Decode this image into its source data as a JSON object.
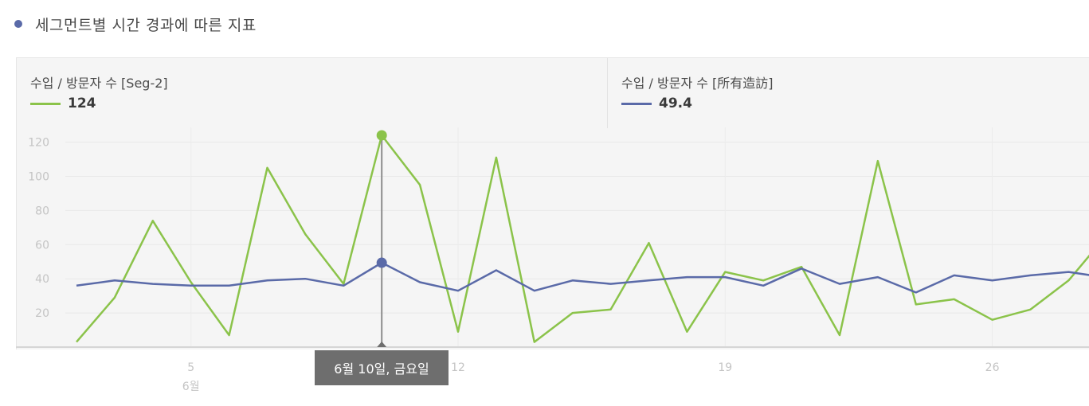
{
  "panel": {
    "title": "세그먼트별 시간 경과에 따른 지표"
  },
  "legend": [
    {
      "label": "수입 / 방문자 수 [Seg-2]",
      "value": "124",
      "color": "#8bc34a"
    },
    {
      "label": "수입 / 방문자 수 [所有造訪]",
      "value": "49.4",
      "color": "#5a6aa8"
    }
  ],
  "tooltip": {
    "text": "6월 10일, 금요일"
  },
  "chart_data": {
    "type": "line",
    "x_axis": {
      "ticks": [
        {
          "day": 5,
          "label": "5",
          "sublabel": "6월"
        },
        {
          "day": 12,
          "label": "12",
          "sublabel": ""
        },
        {
          "day": 19,
          "label": "19",
          "sublabel": ""
        },
        {
          "day": 26,
          "label": "26",
          "sublabel": ""
        }
      ],
      "range": [
        2,
        28.6
      ]
    },
    "y_axis": {
      "ticks": [
        20,
        40,
        60,
        80,
        100,
        120
      ],
      "range": [
        0,
        125
      ]
    },
    "x": [
      2,
      3,
      4,
      5,
      6,
      7,
      8,
      9,
      10,
      11,
      12,
      13,
      14,
      15,
      16,
      17,
      18,
      19,
      20,
      21,
      22,
      23,
      24,
      25,
      26,
      27,
      28,
      28.6
    ],
    "series": [
      {
        "name": "수입 / 방문자 수 [Seg-2]",
        "color": "#8bc34a",
        "values": [
          3,
          29,
          74,
          38,
          7,
          105,
          66,
          37,
          124,
          95,
          9,
          111,
          3,
          20,
          22,
          61,
          9,
          44,
          39,
          47,
          7,
          109,
          25,
          28,
          16,
          22,
          39,
          55
        ]
      },
      {
        "name": "수입 / 방문자 수 [所有造訪]",
        "color": "#5a6aa8",
        "values": [
          36,
          39,
          37,
          36,
          36,
          39,
          40,
          36,
          49.4,
          38,
          33,
          45,
          33,
          39,
          37,
          39,
          41,
          41,
          36,
          46,
          37,
          41,
          32,
          42,
          39,
          42,
          44,
          42
        ]
      }
    ],
    "highlight_day": 10,
    "grid": true
  }
}
